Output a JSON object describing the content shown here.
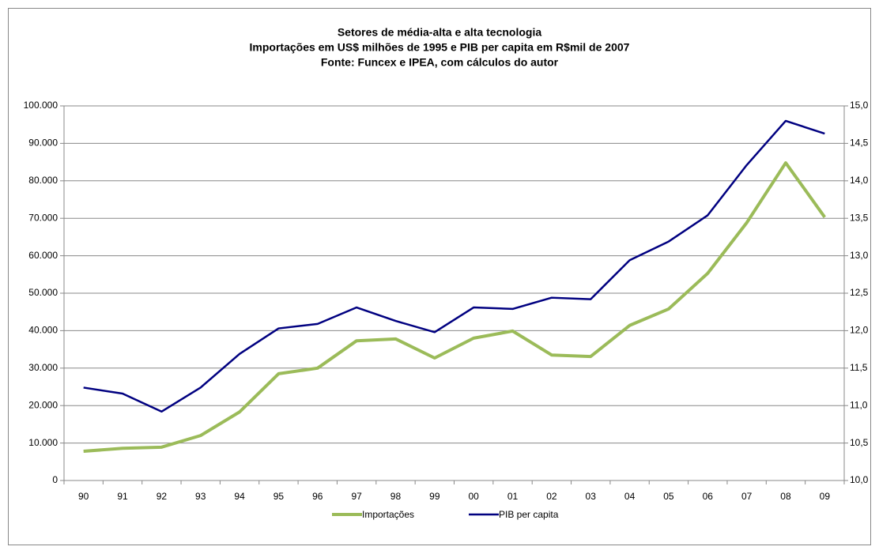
{
  "chart_data": {
    "type": "line",
    "title": [
      "Setores de média-alta e alta tecnologia",
      "Importações em US$ milhões de 1995 e PIB per capita em R$mil de 2007",
      "Fonte: Funcex e IPEA, com cálculos do autor"
    ],
    "categories": [
      "90",
      "91",
      "92",
      "93",
      "94",
      "95",
      "96",
      "97",
      "98",
      "99",
      "00",
      "01",
      "02",
      "03",
      "04",
      "05",
      "06",
      "07",
      "08",
      "09"
    ],
    "series": [
      {
        "name": "Importações",
        "color": "#9bbb59",
        "values": [
          7800,
          8600,
          8900,
          12000,
          18300,
          28500,
          30000,
          37300,
          37800,
          32700,
          38000,
          39900,
          33500,
          33100,
          41400,
          45800,
          55300,
          68800,
          84800,
          70300
        ]
      },
      {
        "name": "PIB per capita",
        "color": "#000080",
        "axis": "y2",
        "values": [
          11.24,
          11.16,
          10.92,
          11.24,
          11.69,
          12.03,
          12.09,
          12.31,
          12.13,
          11.98,
          12.31,
          12.29,
          12.44,
          12.42,
          12.94,
          13.19,
          13.54,
          14.21,
          14.8,
          14.63
        ]
      }
    ],
    "ylim": [
      0,
      100000
    ],
    "yticks": [
      0,
      {
        "value": 10000,
        "label": "10.000"
      },
      {
        "value": 20000,
        "label": "20.000"
      },
      {
        "value": 30000,
        "label": "30.000"
      },
      {
        "value": 40000,
        "label": "40.000"
      },
      {
        "value": 50000,
        "label": "50.000"
      },
      {
        "value": 60000,
        "label": "60.000"
      },
      {
        "value": 70000,
        "label": "70.000"
      },
      {
        "value": 80000,
        "label": "80.000"
      },
      {
        "value": 90000,
        "label": "90.000"
      },
      {
        "value": 100000,
        "label": "100.000"
      }
    ],
    "y2lim": [
      10,
      15
    ],
    "y2ticks": [
      {
        "value": 10,
        "label": "10,0"
      },
      {
        "value": 10.5,
        "label": "10,5"
      },
      {
        "value": 11,
        "label": "11,0"
      },
      {
        "value": 11.5,
        "label": "11,5"
      },
      {
        "value": 12,
        "label": "12,0"
      },
      {
        "value": 12.5,
        "label": "12,5"
      },
      {
        "value": 13,
        "label": "13,0"
      },
      {
        "value": 13.5,
        "label": "13,5"
      },
      {
        "value": 14,
        "label": "14,0"
      },
      {
        "value": 14.5,
        "label": "14,5"
      },
      {
        "value": 15,
        "label": "15,0"
      }
    ],
    "grid": true,
    "legend": "bottom"
  }
}
